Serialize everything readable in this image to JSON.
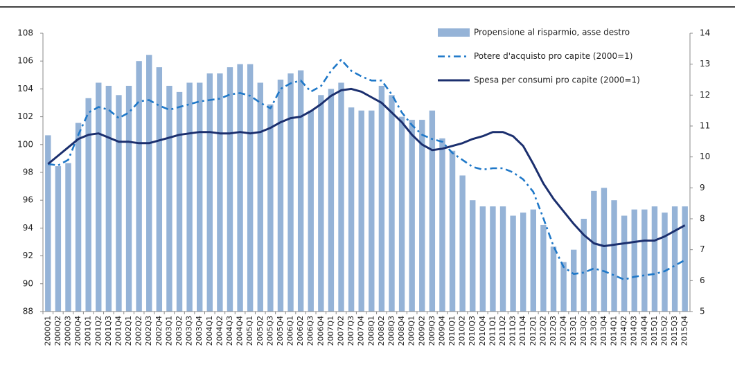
{
  "chart_data": {
    "type": "bar-line",
    "categories": [
      "2000Q1",
      "2000Q2",
      "2000Q3",
      "2000Q4",
      "2001Q1",
      "2001Q2",
      "2001Q3",
      "2001Q4",
      "2002Q1",
      "2002Q2",
      "2002Q3",
      "2002Q4",
      "2003Q1",
      "2003Q2",
      "2003Q3",
      "2003Q4",
      "2004Q1",
      "2004Q2",
      "2004Q3",
      "2004Q4",
      "2005Q1",
      "2005Q2",
      "2005Q3",
      "2005Q4",
      "2006Q1",
      "2006Q2",
      "2006Q3",
      "2006Q4",
      "2007Q1",
      "2007Q2",
      "2007Q3",
      "2007Q4",
      "2008Q1",
      "2008Q2",
      "2008Q3",
      "2008Q4",
      "2009Q1",
      "2009Q2",
      "2009Q3",
      "2009Q4",
      "2010Q1",
      "2010Q2",
      "2010Q3",
      "2010Q4",
      "2011Q1",
      "2011Q2",
      "2011Q3",
      "2011Q4",
      "2012Q1",
      "2012Q2",
      "2012Q3",
      "2012Q4",
      "2013Q1",
      "2013Q2",
      "2013Q3",
      "2013Q4",
      "2014Q1",
      "2014Q2",
      "2014Q3",
      "2014Q4",
      "2015Q1",
      "2015Q2",
      "2015Q3",
      "2015Q4"
    ],
    "series": [
      {
        "name": "Propensione al risparmio, asse destro",
        "kind": "bar",
        "axis": "y2",
        "color": "#95b3d7",
        "values": [
          10.7,
          9.7,
          9.8,
          11.1,
          11.9,
          12.4,
          12.3,
          12.0,
          12.3,
          13.1,
          13.3,
          12.9,
          12.3,
          12.1,
          12.4,
          12.4,
          12.7,
          12.7,
          12.9,
          13.0,
          13.0,
          12.4,
          11.7,
          12.5,
          12.7,
          12.8,
          11.5,
          12.0,
          12.2,
          12.4,
          11.6,
          11.5,
          11.5,
          12.3,
          12.0,
          11.3,
          11.2,
          11.2,
          11.5,
          10.6,
          10.2,
          9.4,
          8.6,
          8.4,
          8.4,
          8.4,
          8.1,
          8.2,
          8.3,
          7.8,
          7.1,
          6.6,
          7.0,
          8.0,
          8.9,
          9.0,
          8.6,
          8.1,
          8.3,
          8.3,
          8.4,
          8.2,
          8.4,
          8.4
        ]
      },
      {
        "name": "Potere d'acquisto pro capite (2000=1)",
        "kind": "line",
        "dash": "10,5,3,5",
        "color": "#1f78c8",
        "values": [
          98.6,
          98.5,
          98.9,
          100.7,
          102.3,
          102.7,
          102.5,
          101.9,
          102.3,
          103.1,
          103.2,
          102.8,
          102.5,
          102.7,
          102.9,
          103.1,
          103.2,
          103.3,
          103.6,
          103.7,
          103.5,
          103.0,
          102.6,
          104.0,
          104.4,
          104.6,
          103.8,
          104.2,
          105.3,
          106.1,
          105.3,
          104.9,
          104.6,
          104.6,
          103.6,
          102.3,
          101.4,
          100.7,
          100.4,
          100.2,
          99.4,
          98.9,
          98.4,
          98.2,
          98.3,
          98.3,
          98.0,
          97.5,
          96.6,
          94.7,
          92.7,
          91.2,
          90.7,
          90.8,
          91.1,
          90.9,
          90.6,
          90.3,
          90.5,
          90.6,
          90.7,
          90.9,
          91.3,
          91.7
        ]
      },
      {
        "name": "Spesa per consumi pro capite (2000=1)",
        "kind": "line",
        "color": "#1b2f6e",
        "values": [
          98.6,
          99.2,
          99.8,
          100.4,
          100.7,
          100.8,
          100.5,
          100.2,
          100.2,
          100.1,
          100.1,
          100.3,
          100.5,
          100.7,
          100.8,
          100.9,
          100.9,
          100.8,
          100.8,
          100.9,
          100.8,
          100.9,
          101.2,
          101.6,
          101.9,
          102.0,
          102.4,
          102.9,
          103.5,
          103.9,
          104.0,
          103.8,
          103.4,
          103.0,
          102.3,
          101.6,
          100.7,
          100.0,
          99.6,
          99.7,
          99.9,
          100.1,
          100.4,
          100.6,
          100.9,
          100.9,
          100.6,
          99.9,
          98.6,
          97.2,
          96.1,
          95.2,
          94.3,
          93.5,
          92.9,
          92.7,
          92.8,
          92.9,
          93.0,
          93.1,
          93.1,
          93.4,
          93.8,
          94.2
        ]
      }
    ],
    "ylim": [
      88,
      108
    ],
    "yticks": [
      88,
      90,
      92,
      94,
      96,
      98,
      100,
      102,
      104,
      106,
      108
    ],
    "y2lim": [
      5,
      14
    ],
    "y2ticks": [
      5,
      6,
      7,
      8,
      9,
      10,
      11,
      12,
      13,
      14
    ],
    "grid": false,
    "legend": "upper right"
  }
}
